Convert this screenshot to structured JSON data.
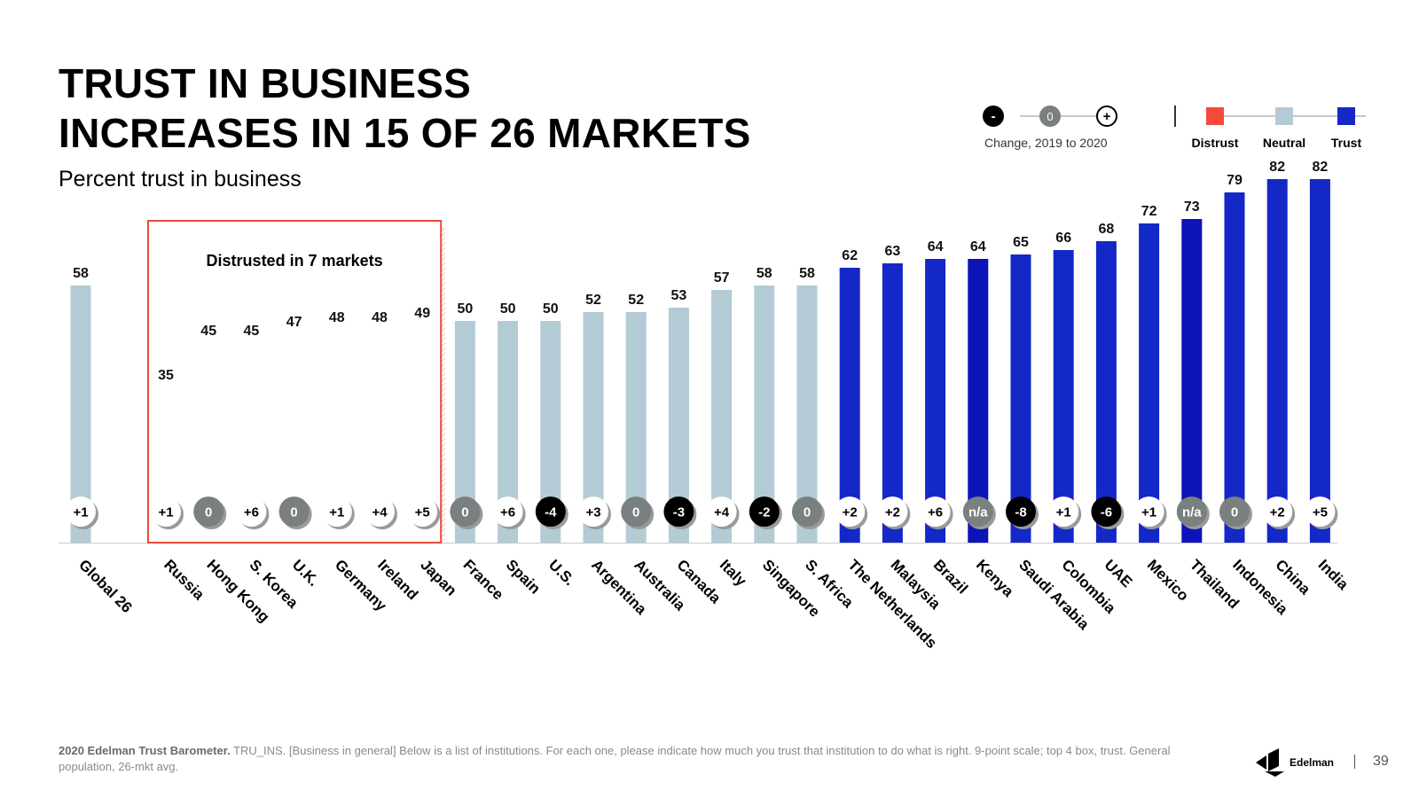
{
  "title_line1": "TRUST IN BUSINESS",
  "title_line2": "INCREASES IN 15 OF 26 MARKETS",
  "subtitle": "Percent trust in business",
  "legend_change": {
    "minus": "-",
    "zero": "0",
    "plus": "+",
    "label": "Change, 2019 to 2020"
  },
  "legend_status": {
    "distrust": "Distrust",
    "neutral": "Neutral",
    "trust": "Trust"
  },
  "colors": {
    "distrust": "#f44a3b",
    "neutral": "#b3cbd5",
    "trust": "#1428c8",
    "trust_dark": "#0c13b8",
    "change_zero": "#7a7f80",
    "change_neg": "#000000",
    "change_pos": "#ffffff",
    "box": "#e8493c"
  },
  "box_label": "Distrusted in 7 markets",
  "footer": {
    "bold": "2020 Edelman Trust Barometer.",
    "text": " TRU_INS. [Business in general] Below is a list of institutions. For each one, please indicate how much you trust that institution to do what is right. 9-point scale; top 4 box, trust. General population, 26-mkt avg."
  },
  "logo_text": "Edelman",
  "page_number": "39",
  "chart_data": {
    "type": "bar",
    "categories": [
      "Global 26",
      "Russia",
      "Hong Kong",
      "S. Korea",
      "U.K.",
      "Germany",
      "Ireland",
      "Japan",
      "France",
      "Spain",
      "U.S.",
      "Argentina",
      "Australia",
      "Canada",
      "Italy",
      "Singapore",
      "S. Africa",
      "The Netherlands",
      "Malaysia",
      "Brazil",
      "Kenya",
      "Saudi Arabia",
      "Colombia",
      "UAE",
      "Mexico",
      "Thailand",
      "Indonesia",
      "China",
      "India"
    ],
    "values": [
      58,
      35,
      45,
      45,
      47,
      48,
      48,
      49,
      50,
      50,
      50,
      52,
      52,
      53,
      57,
      58,
      58,
      62,
      63,
      64,
      64,
      65,
      66,
      68,
      72,
      73,
      79,
      82,
      82
    ],
    "status": [
      "neutral",
      "distrust",
      "distrust",
      "distrust",
      "distrust",
      "distrust",
      "distrust",
      "distrust",
      "neutral",
      "neutral",
      "neutral",
      "neutral",
      "neutral",
      "neutral",
      "neutral",
      "neutral",
      "neutral",
      "trust",
      "trust",
      "trust",
      "trust",
      "trust",
      "trust",
      "trust",
      "trust",
      "trust",
      "trust",
      "trust",
      "trust"
    ],
    "change": [
      "+1",
      "+1",
      "0",
      "+6",
      "0",
      "+1",
      "+4",
      "+5",
      "0",
      "+6",
      "-4",
      "+3",
      "0",
      "-3",
      "+4",
      "-2",
      "0",
      "+2",
      "+2",
      "+6",
      "n/a",
      "-8",
      "+1",
      "-6",
      "+1",
      "n/a",
      "0",
      "+2",
      "+5"
    ],
    "ylim": [
      0,
      100
    ]
  }
}
